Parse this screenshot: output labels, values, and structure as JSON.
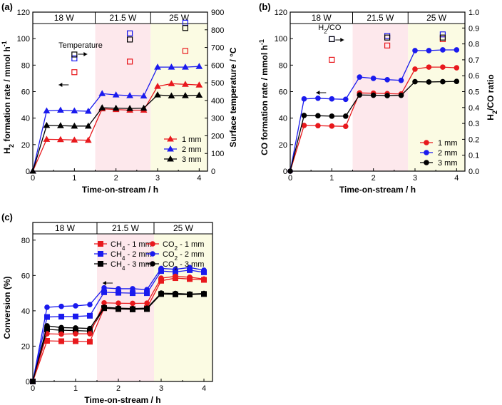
{
  "chart_data": [
    {
      "panel": "(a)",
      "type": "line",
      "x": [
        0,
        0.333,
        0.667,
        1.0,
        1.333,
        1.667,
        2.0,
        2.333,
        2.667,
        3.0,
        3.333,
        3.667,
        4.0
      ],
      "series": [
        {
          "name": "1 mm",
          "color": "#e8191d",
          "marker": "triangle",
          "values": [
            0,
            24,
            23.8,
            23.5,
            23.3,
            47,
            46.5,
            46,
            46,
            64,
            66,
            65.5,
            65
          ]
        },
        {
          "name": "2 mm",
          "color": "#1a1aee",
          "marker": "triangle",
          "values": [
            0,
            45.5,
            46,
            45.5,
            45.2,
            58.5,
            57.5,
            57,
            56.7,
            78.5,
            78.5,
            78.5,
            79
          ]
        },
        {
          "name": "3 mm",
          "color": "#000000",
          "marker": "triangle",
          "values": [
            0,
            34.5,
            34.3,
            34,
            34,
            47.8,
            47.5,
            47.3,
            47.5,
            57.5,
            56.8,
            57,
            57.3
          ]
        }
      ],
      "temperature_points": {
        "label": "Temperature",
        "x": [
          1.0,
          2.333,
          3.667
        ],
        "series": [
          {
            "name": "1 mm",
            "color": "#e8191d",
            "values": [
              560,
              620,
              680
            ]
          },
          {
            "name": "2 mm",
            "color": "#1a1aee",
            "values": [
              638,
              780,
              840
            ]
          },
          {
            "name": "3 mm",
            "color": "#000000",
            "values": [
              660,
              745,
              810
            ]
          }
        ]
      },
      "bands": [
        {
          "label": "18 W",
          "x0": 0,
          "x1": 1.5,
          "color": "#ffffff"
        },
        {
          "label": "21.5 W",
          "x0": 1.5,
          "x1": 2.833,
          "color": "#fde8ec"
        },
        {
          "label": "25 W",
          "x0": 2.833,
          "x1": 4.2,
          "color": "#fbfbe3"
        }
      ],
      "xlabel": "Time-on-stream / h",
      "ylabel": "H₂ formation rate / mmol h⁻¹",
      "y2label": "Surface temperature / °C",
      "xlim": [
        0,
        4.2
      ],
      "ylim": [
        0,
        120
      ],
      "y2lim": [
        0,
        900
      ],
      "xticks": [
        "0",
        "1",
        "2",
        "3",
        "4"
      ],
      "yticks": [
        "0",
        "20",
        "40",
        "60",
        "80",
        "100",
        "120"
      ],
      "y2ticks": [
        "0",
        "100",
        "200",
        "300",
        "400",
        "500",
        "600",
        "700",
        "800",
        "900"
      ],
      "legend": [
        "1 mm",
        "2 mm",
        "3 mm"
      ]
    },
    {
      "panel": "(b)",
      "type": "line",
      "x": [
        0,
        0.333,
        0.667,
        1.0,
        1.333,
        1.667,
        2.0,
        2.333,
        2.667,
        3.0,
        3.333,
        3.667,
        4.0
      ],
      "series": [
        {
          "name": "1 mm",
          "color": "#e8191d",
          "marker": "circle",
          "values": [
            0,
            34.5,
            34.3,
            34,
            33.8,
            59,
            58.8,
            58.5,
            58.2,
            77,
            78.5,
            78.5,
            78
          ]
        },
        {
          "name": "2 mm",
          "color": "#1a1aee",
          "marker": "circle",
          "values": [
            0,
            54.5,
            55,
            54.5,
            54.2,
            71,
            70,
            69,
            68.5,
            91,
            91,
            91.5,
            91.5
          ]
        },
        {
          "name": "3 mm",
          "color": "#000000",
          "marker": "circle",
          "values": [
            0,
            42,
            41.8,
            41.5,
            41.5,
            57.5,
            57.3,
            57,
            57.2,
            67.5,
            67.3,
            67.5,
            67.7
          ]
        }
      ],
      "ratio_points": {
        "label": "H₂/CO",
        "x": [
          1.0,
          2.333,
          3.667
        ],
        "series": [
          {
            "name": "1 mm",
            "color": "#e8191d",
            "values": [
              0.7,
              0.79,
              0.83
            ]
          },
          {
            "name": "2 mm",
            "color": "#1a1aee",
            "values": [
              0.83,
              0.85,
              0.86
            ]
          },
          {
            "name": "3 mm",
            "color": "#000000",
            "values": [
              0.83,
              0.84,
              0.84
            ]
          }
        ]
      },
      "bands": [
        {
          "label": "18 W",
          "x0": 0,
          "x1": 1.5,
          "color": "#ffffff"
        },
        {
          "label": "21.5 W",
          "x0": 1.5,
          "x1": 2.833,
          "color": "#fde8ec"
        },
        {
          "label": "25 W",
          "x0": 2.833,
          "x1": 4.2,
          "color": "#fbfbe3"
        }
      ],
      "xlabel": "Time-on-stream / h",
      "ylabel": "CO formation rate / mmol h⁻¹",
      "y2label": "H₂/CO ratio",
      "xlim": [
        0,
        4.2
      ],
      "ylim": [
        0,
        120
      ],
      "y2lim": [
        0,
        1.0
      ],
      "xticks": [
        "0",
        "1",
        "2",
        "3",
        "4"
      ],
      "yticks": [
        "0",
        "20",
        "40",
        "60",
        "80",
        "100",
        "120"
      ],
      "y2ticks": [
        "0.0",
        "0.1",
        "0.2",
        "0.3",
        "0.4",
        "0.5",
        "0.6",
        "0.7",
        "0.8",
        "0.9",
        "1.0"
      ],
      "legend": [
        "1 mm",
        "2 mm",
        "3 mm"
      ]
    },
    {
      "panel": "(c)",
      "type": "line",
      "x": [
        0,
        0.333,
        0.667,
        1.0,
        1.333,
        1.667,
        2.0,
        2.333,
        2.667,
        3.0,
        3.333,
        3.667,
        4.0
      ],
      "series": [
        {
          "name": "CH₄ - 1 mm",
          "color": "#e8191d",
          "marker": "square",
          "values": [
            0,
            23,
            22.8,
            22.8,
            22.5,
            41.5,
            41,
            41,
            41.5,
            57,
            58.5,
            58,
            57.5
          ]
        },
        {
          "name": "CH₄ - 2 mm",
          "color": "#1a1aee",
          "marker": "square",
          "values": [
            0,
            36.5,
            36.7,
            36.8,
            37.2,
            50.5,
            50.2,
            50,
            50,
            62.5,
            62,
            63,
            61.8
          ]
        },
        {
          "name": "CH₄ - 3 mm",
          "color": "#000000",
          "marker": "square",
          "values": [
            0,
            29.5,
            29,
            28.8,
            28.5,
            41.5,
            41,
            40.8,
            41,
            49.5,
            49.3,
            49.2,
            49.5
          ]
        },
        {
          "name": "CO₂ - 1 mm",
          "color": "#e8191d",
          "marker": "circle",
          "values": [
            0,
            27,
            26.8,
            27,
            27,
            44.5,
            44.3,
            44.2,
            44.3,
            58.5,
            59.5,
            59,
            58
          ]
        },
        {
          "name": "CO₂ - 2 mm",
          "color": "#1a1aee",
          "marker": "circle",
          "values": [
            0,
            42,
            42.5,
            42.8,
            43.5,
            53,
            52.5,
            52.5,
            52,
            64,
            63.5,
            64.5,
            63
          ]
        },
        {
          "name": "CO₂ - 3 mm",
          "color": "#000000",
          "marker": "circle",
          "values": [
            0,
            31.5,
            30.5,
            30.3,
            30,
            42,
            41.5,
            41.3,
            41.5,
            50,
            49.8,
            49.5,
            49.8
          ]
        }
      ],
      "bands": [
        {
          "label": "18 W",
          "x0": 0,
          "x1": 1.5,
          "color": "#ffffff"
        },
        {
          "label": "21.5 W",
          "x0": 1.5,
          "x1": 2.833,
          "color": "#fde8ec"
        },
        {
          "label": "25 W",
          "x0": 2.833,
          "x1": 4.2,
          "color": "#fbfbe3"
        }
      ],
      "xlabel": "Time-on-stream / h",
      "ylabel": "Conversion (%)",
      "xlim": [
        0,
        4.2
      ],
      "ylim": [
        0,
        90
      ],
      "xticks": [
        "0",
        "1",
        "2",
        "3",
        "4"
      ],
      "yticks": [
        "0",
        "20",
        "40",
        "60",
        "80"
      ],
      "legend": [
        "CH₄ - 1 mm",
        "CO₂ - 1 mm",
        "CH₄ - 2 mm",
        "CO₂ - 2 mm",
        "CH₄ - 3 mm",
        "CO₂ - 3 mm"
      ]
    }
  ]
}
